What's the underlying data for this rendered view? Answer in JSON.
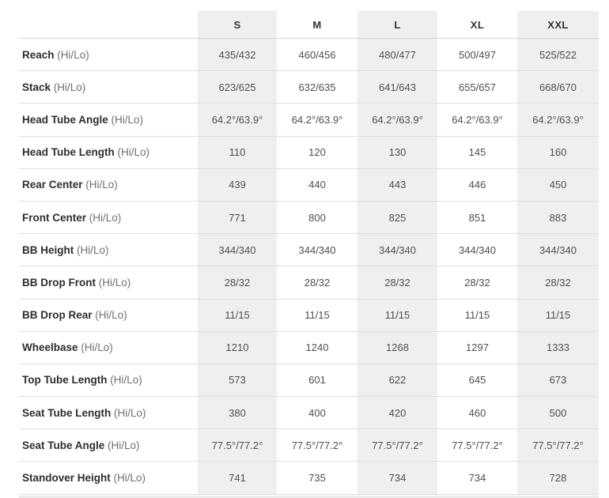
{
  "colors": {
    "column_shade": "#efefef",
    "row_divider": "#dedede",
    "header_divider": "#d2d2d2",
    "label_text": "#2e2e2e",
    "suffix_text": "#6f6f6f",
    "value_text": "#4f4f4f"
  },
  "chart_data": {
    "type": "table",
    "title": "",
    "columns": [
      "",
      "S",
      "M",
      "L",
      "XL",
      "XXL"
    ],
    "shaded_columns": [
      "S",
      "L",
      "XXL"
    ],
    "rows": [
      {
        "label": "Reach",
        "label_suffix": "(Hi/Lo)",
        "values": [
          "435/432",
          "460/456",
          "480/477",
          "500/497",
          "525/522"
        ]
      },
      {
        "label": "Stack",
        "label_suffix": "(Hi/Lo)",
        "values": [
          "623/625",
          "632/635",
          "641/643",
          "655/657",
          "668/670"
        ]
      },
      {
        "label": "Head Tube Angle",
        "label_suffix": "(Hi/Lo)",
        "values": [
          "64.2°/63.9°",
          "64.2°/63.9°",
          "64.2°/63.9°",
          "64.2°/63.9°",
          "64.2°/63.9°"
        ]
      },
      {
        "label": "Head Tube Length",
        "label_suffix": "(Hi/Lo)",
        "values": [
          "110",
          "120",
          "130",
          "145",
          "160"
        ]
      },
      {
        "label": "Rear Center",
        "label_suffix": "(Hi/Lo)",
        "values": [
          "439",
          "440",
          "443",
          "446",
          "450"
        ]
      },
      {
        "label": "Front Center",
        "label_suffix": "(Hi/Lo)",
        "values": [
          "771",
          "800",
          "825",
          "851",
          "883"
        ]
      },
      {
        "label": "BB Height",
        "label_suffix": "(Hi/Lo)",
        "values": [
          "344/340",
          "344/340",
          "344/340",
          "344/340",
          "344/340"
        ]
      },
      {
        "label": "BB Drop Front",
        "label_suffix": "(Hi/Lo)",
        "values": [
          "28/32",
          "28/32",
          "28/32",
          "28/32",
          "28/32"
        ]
      },
      {
        "label": "BB Drop Rear",
        "label_suffix": "(Hi/Lo)",
        "values": [
          "11/15",
          "11/15",
          "11/15",
          "11/15",
          "11/15"
        ]
      },
      {
        "label": "Wheelbase",
        "label_suffix": "(Hi/Lo)",
        "values": [
          "1210",
          "1240",
          "1268",
          "1297",
          "1333"
        ]
      },
      {
        "label": "Top Tube Length",
        "label_suffix": "(Hi/Lo)",
        "values": [
          "573",
          "601",
          "622",
          "645",
          "673"
        ]
      },
      {
        "label": "Seat Tube Length",
        "label_suffix": "(Hi/Lo)",
        "values": [
          "380",
          "400",
          "420",
          "460",
          "500"
        ]
      },
      {
        "label": "Seat Tube Angle",
        "label_suffix": "(Hi/Lo)",
        "values": [
          "77.5°/77.2°",
          "77.5°/77.2°",
          "77.5°/77.2°",
          "77.5°/77.2°",
          "77.5°/77.2°"
        ]
      },
      {
        "label": "Standover Height",
        "label_suffix": "(Hi/Lo)",
        "values": [
          "741",
          "735",
          "734",
          "734",
          "728"
        ]
      }
    ]
  }
}
